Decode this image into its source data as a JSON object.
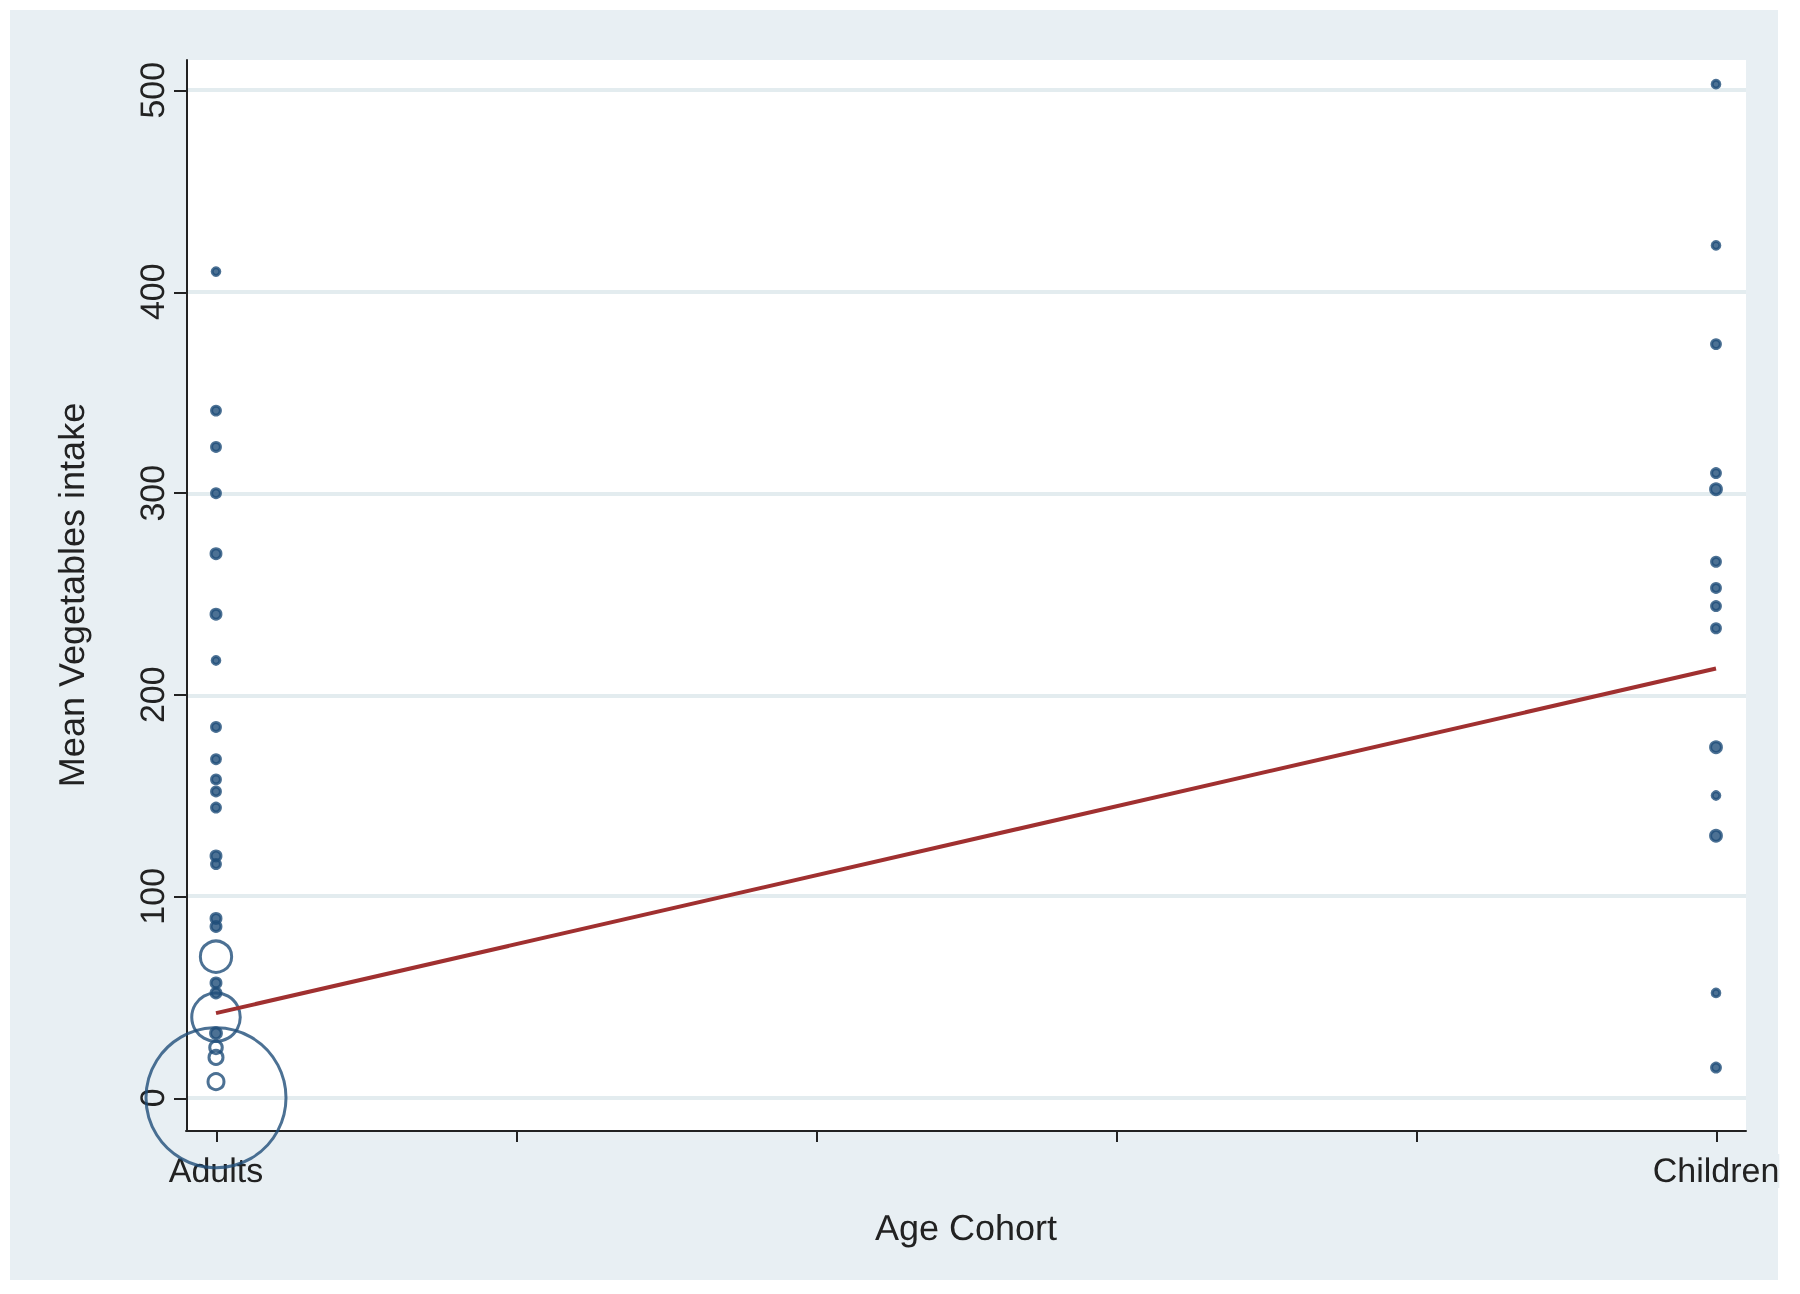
{
  "chart_data": {
    "type": "bubble",
    "xlabel": "Age Cohort",
    "ylabel": "Mean Vegetables intake",
    "categories": [
      "Adults",
      null,
      null,
      null,
      null,
      "Children"
    ],
    "ylim": [
      -16,
      515
    ],
    "yticks": [
      0,
      100,
      200,
      300,
      400,
      500
    ],
    "grid": "y",
    "marker": "circle",
    "series": [
      {
        "color": "#1f4e79",
        "x": [
          "Adults",
          "Adults",
          "Adults",
          "Adults",
          "Adults",
          "Adults",
          "Adults",
          "Adults",
          "Adults",
          "Adults",
          "Adults",
          "Adults",
          "Adults",
          "Adults",
          "Adults",
          "Adults",
          "Adults",
          "Adults",
          "Adults",
          "Adults",
          "Adults",
          "Adults",
          "Adults",
          "Adults",
          "Adults",
          "Children",
          "Children",
          "Children",
          "Children",
          "Children",
          "Children",
          "Children",
          "Children",
          "Children",
          "Children",
          "Children",
          "Children",
          "Children",
          "Children"
        ],
        "values": [
          410,
          341,
          323,
          300,
          270,
          240,
          217,
          184,
          168,
          158,
          152,
          144,
          120,
          116,
          89,
          85,
          70,
          57,
          52,
          40,
          32,
          25,
          20,
          8,
          0,
          503,
          423,
          374,
          310,
          302,
          266,
          253,
          244,
          233,
          174,
          150,
          130,
          52,
          15
        ],
        "sizes": [
          0.003,
          0.004,
          0.004,
          0.004,
          0.005,
          0.005,
          0.003,
          0.004,
          0.004,
          0.004,
          0.004,
          0.004,
          0.005,
          0.004,
          0.005,
          0.005,
          0.05,
          0.005,
          0.005,
          0.12,
          0.006,
          0.008,
          0.01,
          0.013,
          1,
          0.003,
          0.003,
          0.004,
          0.004,
          0.006,
          0.004,
          0.004,
          0.004,
          0.004,
          0.006,
          0.003,
          0.006,
          0.003,
          0.004
        ]
      },
      {
        "type": "line",
        "color": "#a03030",
        "x": [
          "Adults",
          "Children"
        ],
        "values": [
          42,
          213
        ],
        "marker": "none",
        "line_style": "solid"
      }
    ]
  }
}
